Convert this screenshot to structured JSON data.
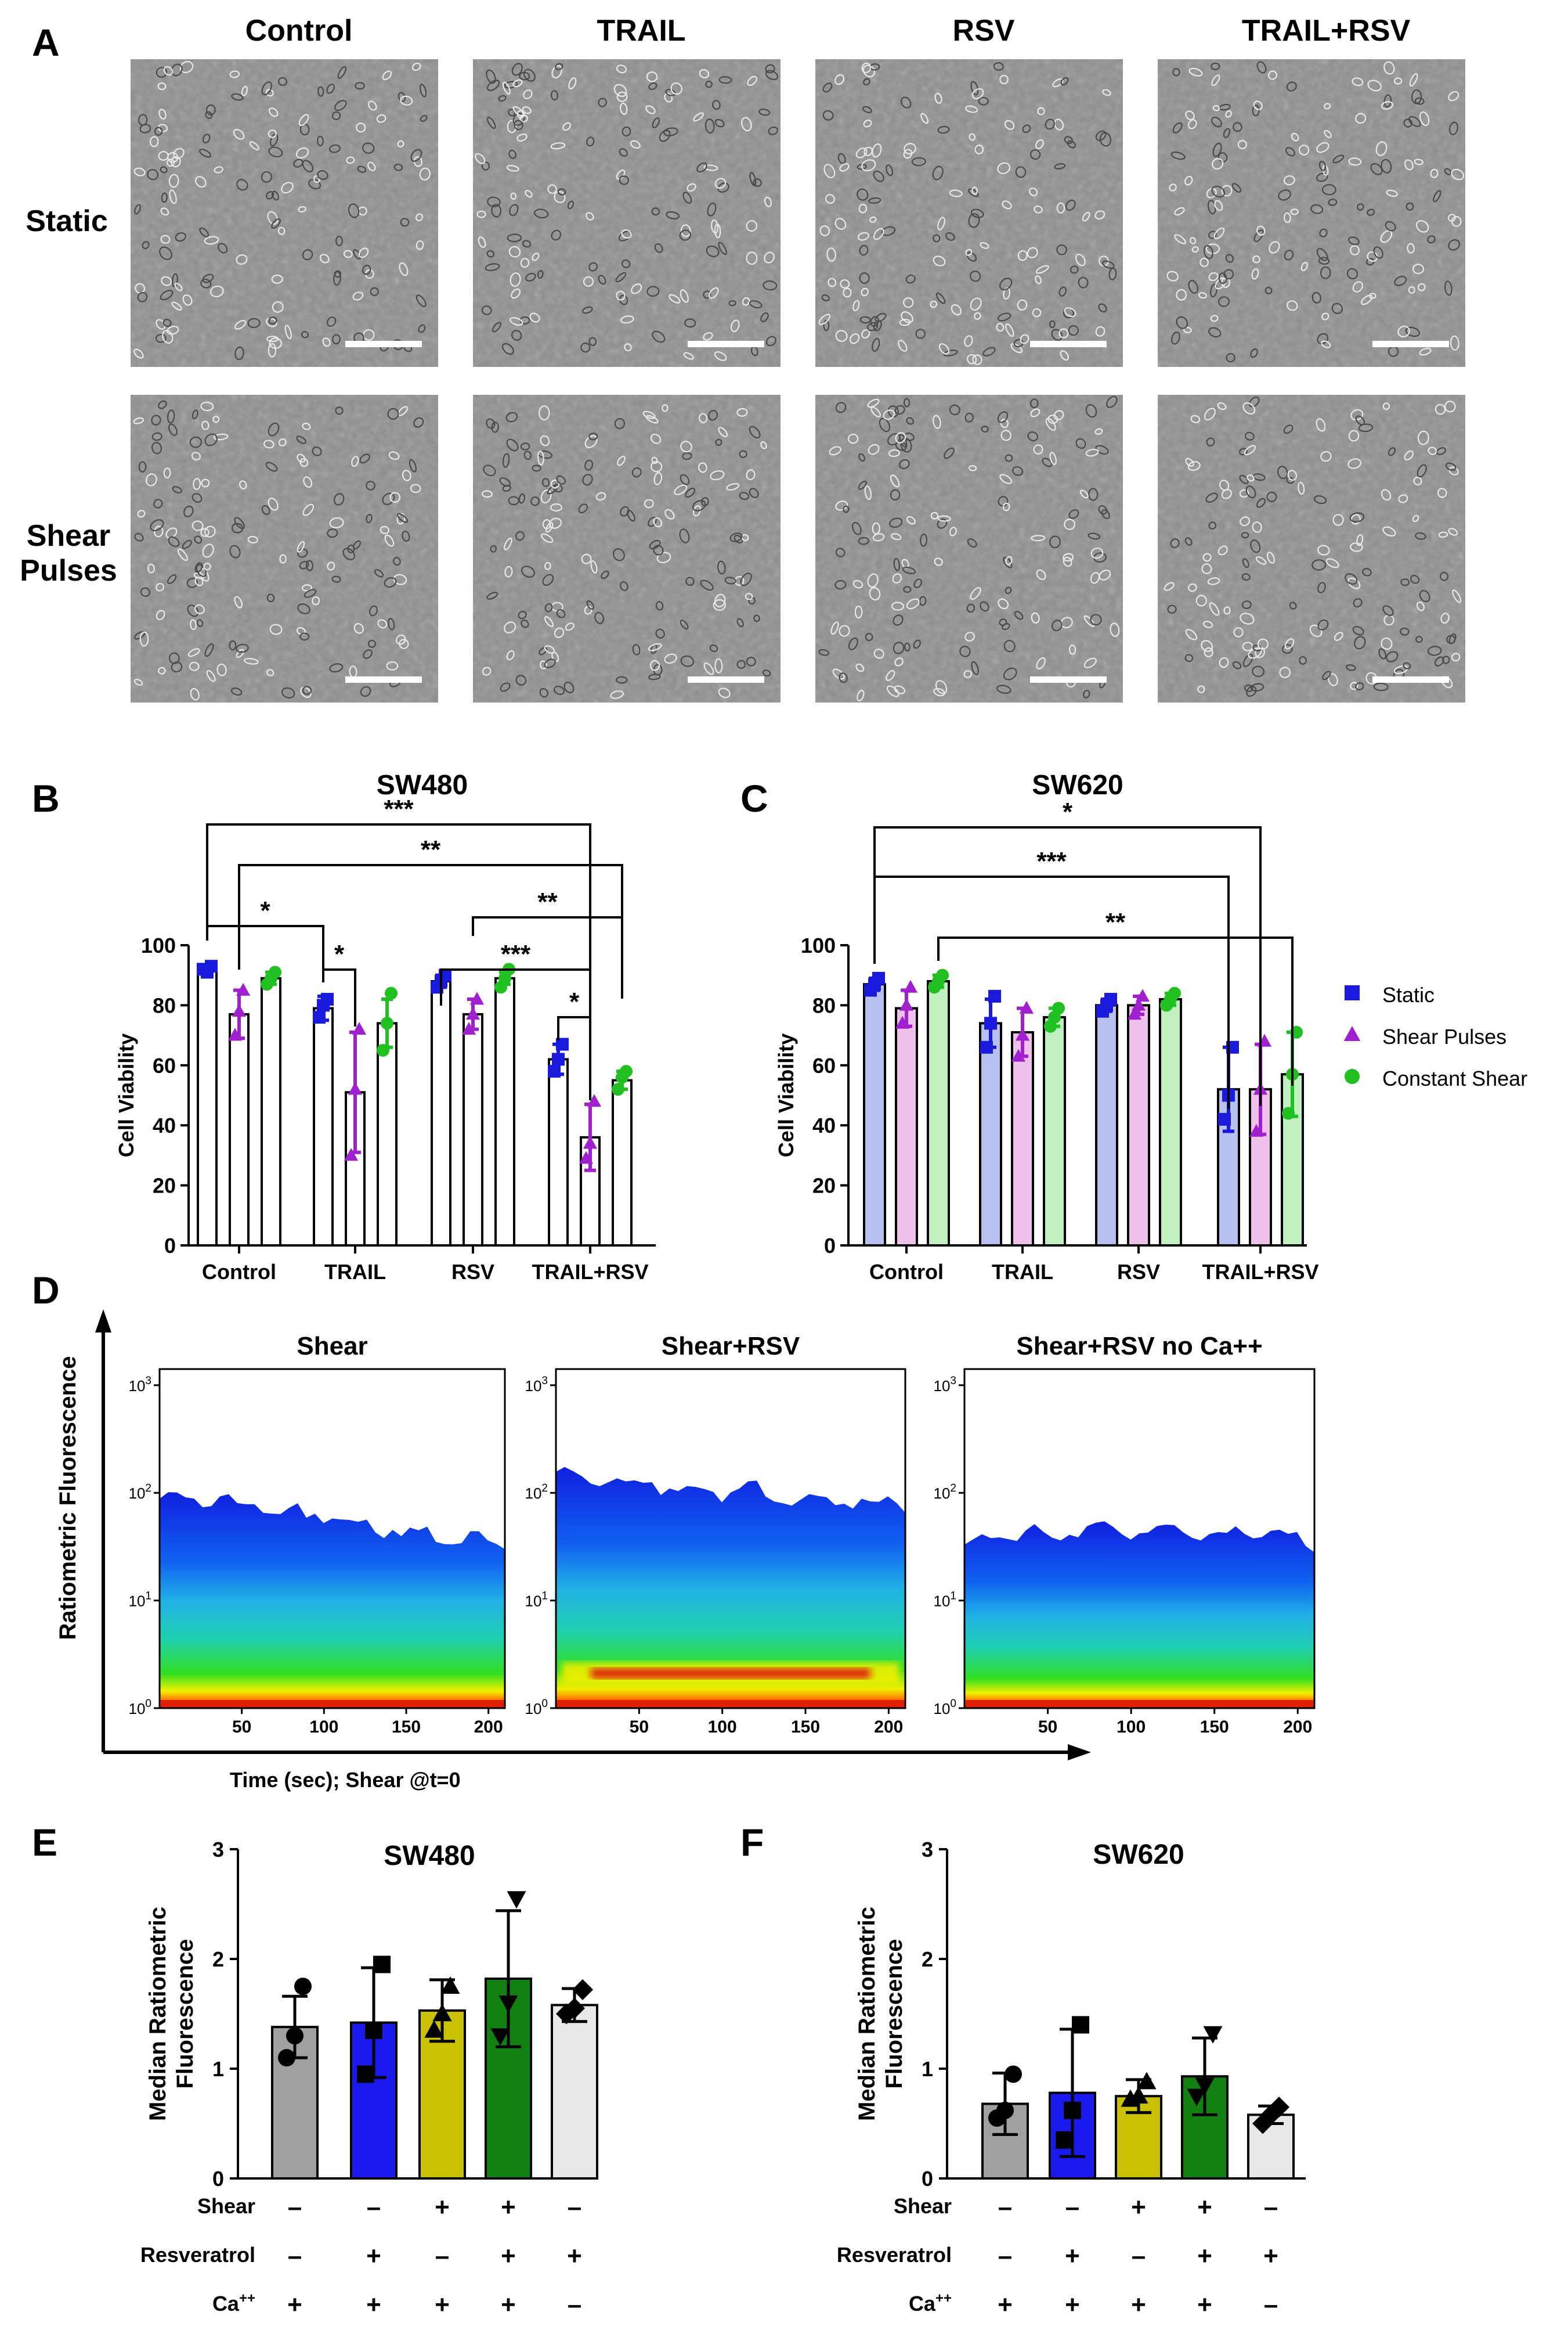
{
  "panel_letters": {
    "a": "A",
    "b": "B",
    "c": "C",
    "d": "D",
    "e": "E",
    "f": "F"
  },
  "panel_a": {
    "columns": [
      "Control",
      "TRAIL",
      "RSV",
      "TRAIL+RSV"
    ],
    "rows": [
      "Static",
      "Shear\nPulses"
    ],
    "scale_bar_color": "#ffffff",
    "micrograph_color": "#8f8f8f"
  },
  "legend": {
    "items": [
      {
        "label": "Static",
        "marker": "square",
        "color": "#1a1adc"
      },
      {
        "label": "Shear Pulses",
        "marker": "triangle",
        "color": "#a020d0"
      },
      {
        "label": "Constant Shear",
        "marker": "circle",
        "color": "#20c020"
      }
    ]
  },
  "chart_data": [
    {
      "id": "B",
      "type": "bar",
      "title": "SW480",
      "ylabel": "Cell Viability",
      "ylim": [
        0,
        100
      ],
      "yticks": [
        0,
        20,
        40,
        60,
        80,
        100
      ],
      "categories": [
        "Control",
        "TRAIL",
        "RSV",
        "TRAIL+RSV"
      ],
      "series": [
        {
          "name": "Static",
          "values": [
            92,
            79,
            88,
            62
          ],
          "err": [
            1,
            4,
            2,
            5
          ],
          "points": [
            [
              92,
              91,
              93
            ],
            [
              76,
              80,
              82
            ],
            [
              86,
              88,
              90
            ],
            [
              58,
              62,
              67
            ]
          ]
        },
        {
          "name": "Shear Pulses",
          "values": [
            77,
            51,
            77,
            36
          ],
          "err": [
            8,
            20,
            5,
            11
          ],
          "points": [
            [
              70,
              78,
              85
            ],
            [
              30,
              52,
              72
            ],
            [
              72,
              77,
              82
            ],
            [
              29,
              34,
              48
            ]
          ]
        },
        {
          "name": "Constant Shear",
          "values": [
            89,
            74,
            89,
            55
          ],
          "err": [
            2,
            8,
            2,
            3
          ],
          "points": [
            [
              87,
              89,
              91
            ],
            [
              65,
              74,
              84
            ],
            [
              86,
              89,
              92
            ],
            [
              52,
              56,
              58
            ]
          ]
        }
      ],
      "significance": [
        {
          "label": "***",
          "from": [
            0,
            0
          ],
          "to": [
            3,
            1
          ]
        },
        {
          "label": "**",
          "from": [
            0,
            1
          ],
          "to": [
            3,
            2
          ]
        },
        {
          "label": "**",
          "from": [
            2,
            1
          ],
          "to": [
            3,
            2
          ]
        },
        {
          "label": "*",
          "from": [
            0,
            0
          ],
          "to": [
            1,
            0
          ]
        },
        {
          "label": "***",
          "from": [
            2,
            0
          ],
          "to": [
            3,
            1
          ]
        },
        {
          "label": "*",
          "from": [
            1,
            0
          ],
          "to": [
            1,
            1
          ]
        },
        {
          "label": "*",
          "from": [
            3,
            0
          ],
          "to": [
            3,
            1
          ]
        }
      ]
    },
    {
      "id": "C",
      "type": "bar",
      "title": "SW620",
      "ylabel": "Cell Viability",
      "ylim": [
        0,
        100
      ],
      "yticks": [
        0,
        20,
        40,
        60,
        80,
        100
      ],
      "categories": [
        "Control",
        "TRAIL",
        "RSV",
        "TRAIL+RSV"
      ],
      "fills": [
        "#b8c0f0",
        "#f0c0ec",
        "#c0f0c0"
      ],
      "series": [
        {
          "name": "Static",
          "values": [
            87,
            74,
            80,
            52
          ],
          "err": [
            2,
            8,
            2,
            14
          ],
          "points": [
            [
              85,
              87,
              89
            ],
            [
              66,
              74,
              83
            ],
            [
              78,
              80,
              82
            ],
            [
              42,
              50,
              66
            ]
          ]
        },
        {
          "name": "Shear Pulses",
          "values": [
            79,
            71,
            80,
            52
          ],
          "err": [
            6,
            8,
            3,
            15
          ],
          "points": [
            [
              74,
              80,
              86
            ],
            [
              63,
              70,
              79
            ],
            [
              77,
              80,
              83
            ],
            [
              38,
              52,
              68
            ]
          ]
        },
        {
          "name": "Constant Shear",
          "values": [
            88,
            76,
            82,
            57
          ],
          "err": [
            2,
            3,
            2,
            14
          ],
          "points": [
            [
              86,
              88,
              90
            ],
            [
              73,
              76,
              79
            ],
            [
              80,
              82,
              84
            ],
            [
              44,
              57,
              71
            ]
          ]
        }
      ],
      "significance": [
        {
          "label": "*",
          "from": [
            0,
            0
          ],
          "to": [
            3,
            1
          ]
        },
        {
          "label": "***",
          "from": [
            0,
            0
          ],
          "to": [
            3,
            0
          ]
        },
        {
          "label": "**",
          "from": [
            0,
            2
          ],
          "to": [
            3,
            2
          ]
        }
      ]
    },
    {
      "id": "D",
      "type": "heatmap",
      "ylabel": "Ratiometric Fluorescence",
      "xlabel": "Time (sec); Shear @t=0",
      "panels": [
        {
          "title": "Shear",
          "xticks": [
            50,
            100,
            150,
            200
          ],
          "ytick_exponents": [
            0,
            1,
            2,
            3
          ],
          "xlim": [
            0,
            210
          ],
          "ceiling_log10": 2.0,
          "band_log10": 0.3
        },
        {
          "title": "Shear+RSV",
          "xticks": [
            50,
            100,
            150,
            200
          ],
          "ytick_exponents": [
            0,
            1,
            2,
            3
          ],
          "xlim": [
            0,
            210
          ],
          "ceiling_log10": 2.15,
          "band_log10": 0.35
        },
        {
          "title": "Shear+RSV  no Ca++",
          "xticks": [
            50,
            100,
            150,
            200
          ],
          "ytick_exponents": [
            0,
            1,
            2,
            3
          ],
          "xlim": [
            0,
            210
          ],
          "ceiling_log10": 1.55,
          "band_log10": 0.05
        }
      ]
    },
    {
      "id": "E",
      "type": "bar",
      "title": "SW480",
      "ylabel": "Median Ratiometric Fluorescence",
      "ylim": [
        0,
        3
      ],
      "yticks": [
        0,
        1,
        2,
        3
      ],
      "values": [
        1.38,
        1.42,
        1.53,
        1.82,
        1.58
      ],
      "err": [
        0.28,
        0.5,
        0.28,
        0.62,
        0.15
      ],
      "colors": [
        "#a0a0a0",
        "#1a1aee",
        "#c8c000",
        "#108010",
        "#e8e8e8"
      ],
      "markers": [
        "circle",
        "square",
        "triangle-up",
        "triangle-down",
        "diamond"
      ],
      "points": [
        [
          1.1,
          1.3,
          1.75
        ],
        [
          0.95,
          1.35,
          1.95
        ],
        [
          1.35,
          1.5,
          1.75
        ],
        [
          1.3,
          1.6,
          2.55
        ],
        [
          1.5,
          1.55,
          1.72
        ]
      ],
      "conditions": [
        {
          "label": "Shear",
          "symbols": [
            "–",
            "–",
            "+",
            "+",
            "–"
          ]
        },
        {
          "label": "Resveratrol",
          "symbols": [
            "–",
            "+",
            "–",
            "+",
            "+"
          ]
        },
        {
          "label": "Ca++",
          "symbols": [
            "+",
            "+",
            "+",
            "+",
            "–"
          ]
        }
      ]
    },
    {
      "id": "F",
      "type": "bar",
      "title": "SW620",
      "ylabel": "Median Ratiometric Fluorescence",
      "ylim": [
        0,
        3
      ],
      "yticks": [
        0,
        1,
        2,
        3
      ],
      "values": [
        0.68,
        0.78,
        0.75,
        0.93,
        0.58
      ],
      "err": [
        0.28,
        0.58,
        0.15,
        0.35,
        0.08
      ],
      "colors": [
        "#a0a0a0",
        "#1a1aee",
        "#c8c000",
        "#108010",
        "#e8e8e8"
      ],
      "markers": [
        "circle",
        "square",
        "triangle-up",
        "triangle-down",
        "diamond"
      ],
      "points": [
        [
          0.55,
          0.62,
          0.95
        ],
        [
          0.35,
          0.62,
          1.4
        ],
        [
          0.72,
          0.75,
          0.88
        ],
        [
          0.75,
          0.85,
          1.32
        ],
        [
          0.5,
          0.58,
          0.65
        ]
      ],
      "conditions": [
        {
          "label": "Shear",
          "symbols": [
            "–",
            "–",
            "+",
            "+",
            "–"
          ]
        },
        {
          "label": "Resveratrol",
          "symbols": [
            "–",
            "+",
            "–",
            "+",
            "+"
          ]
        },
        {
          "label": "Ca++",
          "symbols": [
            "+",
            "+",
            "+",
            "+",
            "–"
          ]
        }
      ]
    }
  ]
}
